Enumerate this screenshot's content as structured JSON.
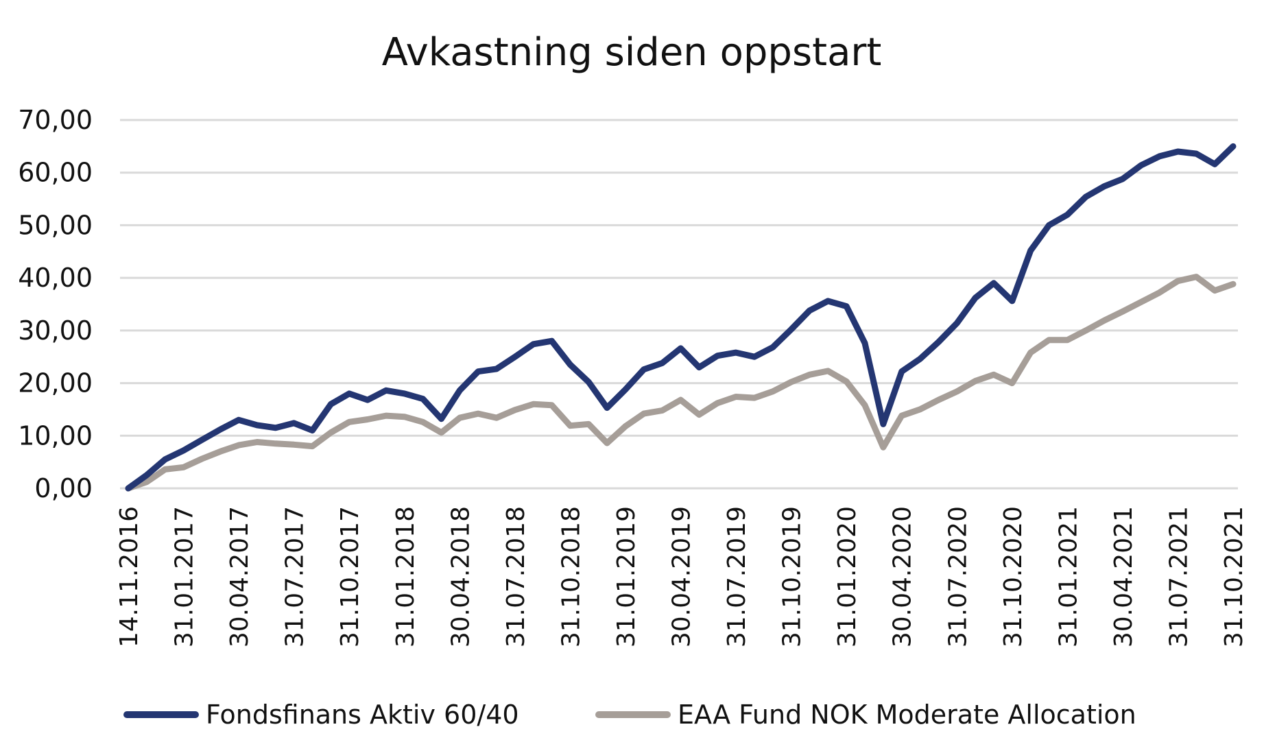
{
  "chart_data": {
    "type": "line",
    "title": "Avkastning siden oppstart",
    "xlabel": "",
    "ylabel": "",
    "ylim": [
      0,
      70
    ],
    "y_ticks": [
      "0,00",
      "10,00",
      "20,00",
      "30,00",
      "40,00",
      "50,00",
      "60,00",
      "70,00"
    ],
    "y_tick_values": [
      0,
      10,
      20,
      30,
      40,
      50,
      60,
      70
    ],
    "grid": true,
    "legend_position": "bottom",
    "x_tick_labels": [
      "14.11.2016",
      "31.01.2017",
      "30.04.2017",
      "31.07.2017",
      "31.10.2017",
      "31.01.2018",
      "30.04.2018",
      "31.07.2018",
      "31.10.2018",
      "31.01.2019",
      "30.04.2019",
      "31.07.2019",
      "31.10.2019",
      "31.01.2020",
      "30.04.2020",
      "31.07.2020",
      "31.10.2020",
      "31.01.2021",
      "30.04.2021",
      "31.07.2021",
      "31.10.2021"
    ],
    "x_tick_index": [
      0,
      3,
      6,
      9,
      12,
      15,
      18,
      21,
      24,
      27,
      30,
      33,
      36,
      39,
      42,
      45,
      48,
      51,
      54,
      57,
      60
    ],
    "series": [
      {
        "name": "Fondsfinans Aktiv 60/40",
        "color": "#243672",
        "values": [
          0,
          2.5,
          5.5,
          7.2,
          9.2,
          11.2,
          13.0,
          12.0,
          11.5,
          12.4,
          11.0,
          16.0,
          18.0,
          16.8,
          18.6,
          18.0,
          17.0,
          13.2,
          18.6,
          22.2,
          22.7,
          25.0,
          27.4,
          28.0,
          23.5,
          20.2,
          15.3,
          18.8,
          22.6,
          23.8,
          26.6,
          23.0,
          25.2,
          25.8,
          25.0,
          26.8,
          30.2,
          33.8,
          35.6,
          34.6,
          27.6,
          12.2,
          22.2,
          24.6,
          27.8,
          31.4,
          36.2,
          39.0,
          35.6,
          45.2,
          50.0,
          52.0,
          55.4,
          57.4,
          58.8,
          61.4,
          63.1,
          64.0,
          63.6,
          61.6,
          65.0
        ]
      },
      {
        "name": "EAA Fund NOK Moderate Allocation",
        "color": "#a69e98",
        "values": [
          0,
          1.2,
          3.6,
          4.0,
          5.6,
          7.0,
          8.2,
          8.8,
          8.5,
          8.3,
          8.0,
          10.6,
          12.6,
          13.1,
          13.8,
          13.6,
          12.6,
          10.6,
          13.4,
          14.2,
          13.4,
          14.9,
          16.0,
          15.8,
          11.9,
          12.2,
          8.6,
          11.8,
          14.2,
          14.8,
          16.8,
          14.0,
          16.2,
          17.4,
          17.2,
          18.4,
          20.2,
          21.6,
          22.3,
          20.3,
          15.8,
          7.8,
          13.8,
          15.0,
          16.8,
          18.4,
          20.4,
          21.6,
          20.0,
          25.8,
          28.2,
          28.2,
          30.0,
          31.9,
          33.6,
          35.4,
          37.2,
          39.4,
          40.2,
          37.6,
          38.8
        ]
      }
    ]
  }
}
